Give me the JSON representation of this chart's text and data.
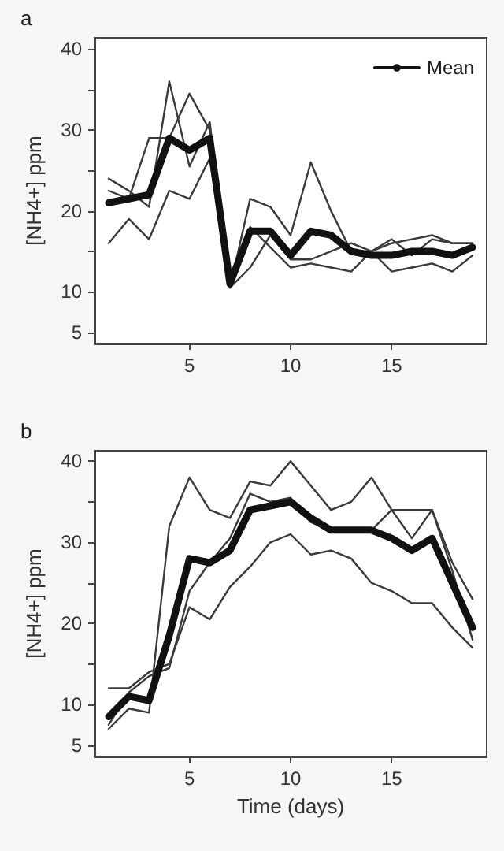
{
  "chart_data": [
    {
      "type": "line",
      "title": "a",
      "ylabel": "[NH4+] ppm",
      "x": [
        1,
        2,
        3,
        4,
        5,
        6,
        7,
        8,
        9,
        10,
        11,
        12,
        13,
        14,
        15,
        16,
        17,
        18,
        19
      ],
      "xlim": [
        0.3,
        19.7
      ],
      "xticks": [
        5,
        10,
        15
      ],
      "ylim": [
        3.6,
        41.4
      ],
      "yticks": [
        5,
        10,
        {
          "value": 15,
          "label": null
        },
        20,
        {
          "value": 25,
          "label": null
        },
        30,
        {
          "value": 35,
          "label": null
        },
        40
      ],
      "grid": false,
      "legend": "top right",
      "marker": "none",
      "line_style": "solid",
      "series": [
        {
          "color": "#3a3a3a",
          "values": [
            24,
            22.5,
            20.5,
            36,
            25.5,
            31,
            10.5,
            21.5,
            20.5,
            17,
            26,
            20,
            15,
            15,
            16.5,
            14.5,
            16.5,
            16,
            16
          ]
        },
        {
          "color": "#3a3a3a",
          "values": [
            22.5,
            21.5,
            29,
            29,
            34.5,
            30,
            11,
            18,
            15.5,
            13,
            13.5,
            13,
            12.5,
            15,
            12.5,
            13,
            13.5,
            12.5,
            14.5
          ]
        },
        {
          "color": "#3a3a3a",
          "values": [
            16,
            19,
            16.5,
            22.5,
            21.5,
            26.5,
            10.5,
            13,
            17,
            14,
            14,
            15,
            16,
            15,
            16,
            16.5,
            17,
            16,
            16
          ]
        },
        {
          "name": "Mean",
          "color": "#111111",
          "values": [
            21,
            21.5,
            22,
            29,
            27.5,
            29,
            11,
            17.5,
            17.5,
            14.5,
            17.5,
            17,
            15,
            14.5,
            14.5,
            15,
            15,
            14.5,
            15.5
          ]
        }
      ]
    },
    {
      "type": "line",
      "title": "b",
      "xlabel": "Time (days)",
      "ylabel": "[NH4+] ppm",
      "x": [
        1,
        2,
        3,
        4,
        5,
        6,
        7,
        8,
        9,
        10,
        11,
        12,
        13,
        14,
        15,
        16,
        17,
        18,
        19
      ],
      "xlim": [
        0.3,
        19.7
      ],
      "xticks": [
        5,
        10,
        15
      ],
      "ylim": [
        3.6,
        41.3
      ],
      "yticks": [
        5,
        10,
        {
          "value": 15,
          "label": null
        },
        20,
        {
          "value": 25,
          "label": null
        },
        30,
        {
          "value": 35,
          "label": null
        },
        40
      ],
      "grid": false,
      "marker": "none",
      "line_style": "solid",
      "series": [
        {
          "color": "#3a3a3a",
          "values": [
            7,
            9.5,
            9,
            32,
            38,
            34,
            33,
            37.5,
            37,
            40,
            37,
            34,
            35,
            38,
            34,
            30.5,
            34,
            27.5,
            23
          ]
        },
        {
          "color": "#3a3a3a",
          "values": [
            12,
            12,
            14,
            15,
            22,
            20.5,
            24.5,
            27,
            30,
            31,
            28.5,
            29,
            28,
            25,
            24,
            22.5,
            22.5,
            19.5,
            17
          ]
        },
        {
          "color": "#3a3a3a",
          "values": [
            7.5,
            11.5,
            13.5,
            14.5,
            24,
            27.5,
            30.5,
            36,
            35,
            35.5,
            32.5,
            31.5,
            31.5,
            31.5,
            34,
            34,
            34,
            26.5,
            18
          ]
        },
        {
          "color": "#111111",
          "values": [
            8.5,
            11,
            10.5,
            18.5,
            28,
            27.5,
            29,
            34,
            34.5,
            35,
            33,
            31.5,
            31.5,
            31.5,
            30.5,
            29,
            30.5,
            25,
            19.5
          ]
        }
      ]
    }
  ]
}
